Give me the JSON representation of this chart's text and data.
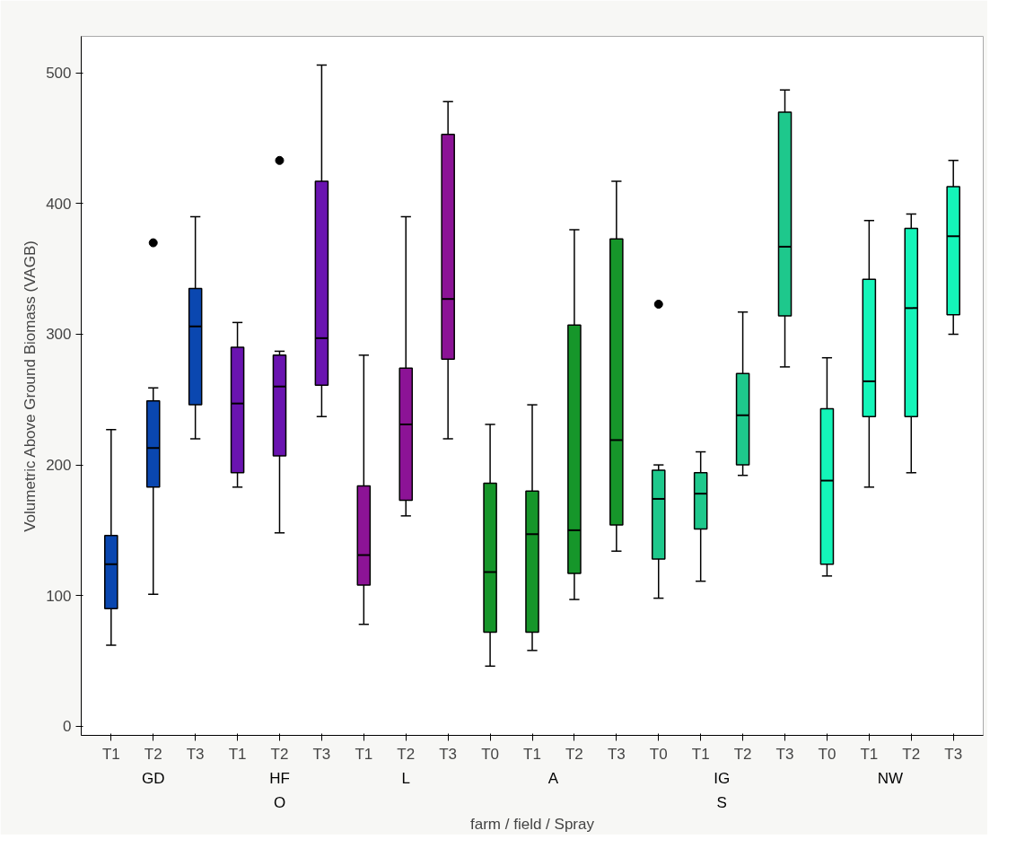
{
  "chart_data": {
    "type": "box",
    "xlabel": "farm / field / Spray",
    "ylabel": "Volumetric Above Ground Biomass (VAGB)",
    "ylim": [
      -7,
      528
    ],
    "yticks": [
      0,
      100,
      200,
      300,
      400,
      500
    ],
    "grid": false,
    "annotations": [
      "GD",
      "HF",
      "L",
      "A",
      "IG",
      "NW",
      "O",
      "S"
    ],
    "categories": [
      "T1",
      "T2",
      "T3",
      "T1",
      "T2",
      "T3",
      "T1",
      "T2",
      "T3",
      "T0",
      "T1",
      "T2",
      "T3",
      "T0",
      "T1",
      "T2",
      "T3",
      "T0",
      "T1",
      "T2",
      "T3"
    ],
    "colors": [
      "#0a47b0",
      "#0a47b0",
      "#0a47b0",
      "#6a14b0",
      "#6a14b0",
      "#6a14b0",
      "#8c1396",
      "#8c1396",
      "#8c1396",
      "#16962a",
      "#16962a",
      "#16962a",
      "#16962a",
      "#1ec88c",
      "#1ec88c",
      "#1ec88c",
      "#1ec88c",
      "#14f5b9",
      "#14f5b9",
      "#14f5b9",
      "#14f5b9"
    ],
    "boxes": [
      {
        "low": 62,
        "q1": 90,
        "median": 124,
        "q3": 146,
        "high": 227
      },
      {
        "low": 101,
        "q1": 183,
        "median": 213,
        "q3": 249,
        "high": 259,
        "outliers": [
          370
        ]
      },
      {
        "low": 220,
        "q1": 246,
        "median": 306,
        "q3": 335,
        "high": 390
      },
      {
        "low": 183,
        "q1": 194,
        "median": 247,
        "q3": 290,
        "high": 309
      },
      {
        "low": 148,
        "q1": 207,
        "median": 260,
        "q3": 284,
        "high": 287,
        "outliers": [
          433
        ]
      },
      {
        "low": 237,
        "q1": 261,
        "median": 297,
        "q3": 417,
        "high": 506
      },
      {
        "low": 78,
        "q1": 108,
        "median": 131,
        "q3": 184,
        "high": 284
      },
      {
        "low": 161,
        "q1": 173,
        "median": 231,
        "q3": 274,
        "high": 390
      },
      {
        "low": 220,
        "q1": 281,
        "median": 327,
        "q3": 453,
        "high": 478
      },
      {
        "low": 46,
        "q1": 72,
        "median": 118,
        "q3": 186,
        "high": 231
      },
      {
        "low": 58,
        "q1": 72,
        "median": 147,
        "q3": 180,
        "high": 246
      },
      {
        "low": 97,
        "q1": 117,
        "median": 150,
        "q3": 307,
        "high": 380
      },
      {
        "low": 134,
        "q1": 154,
        "median": 219,
        "q3": 373,
        "high": 417
      },
      {
        "low": 98,
        "q1": 128,
        "median": 174,
        "q3": 196,
        "high": 200,
        "outliers": [
          323
        ]
      },
      {
        "low": 111,
        "q1": 151,
        "median": 178,
        "q3": 194,
        "high": 210
      },
      {
        "low": 192,
        "q1": 200,
        "median": 238,
        "q3": 270,
        "high": 317
      },
      {
        "low": 275,
        "q1": 314,
        "median": 367,
        "q3": 470,
        "high": 487
      },
      {
        "low": 115,
        "q1": 124,
        "median": 188,
        "q3": 243,
        "high": 282
      },
      {
        "low": 183,
        "q1": 237,
        "median": 264,
        "q3": 342,
        "high": 387
      },
      {
        "low": 194,
        "q1": 237,
        "median": 320,
        "q3": 381,
        "high": 392
      },
      {
        "low": 300,
        "q1": 315,
        "median": 375,
        "q3": 413,
        "high": 433
      }
    ]
  }
}
